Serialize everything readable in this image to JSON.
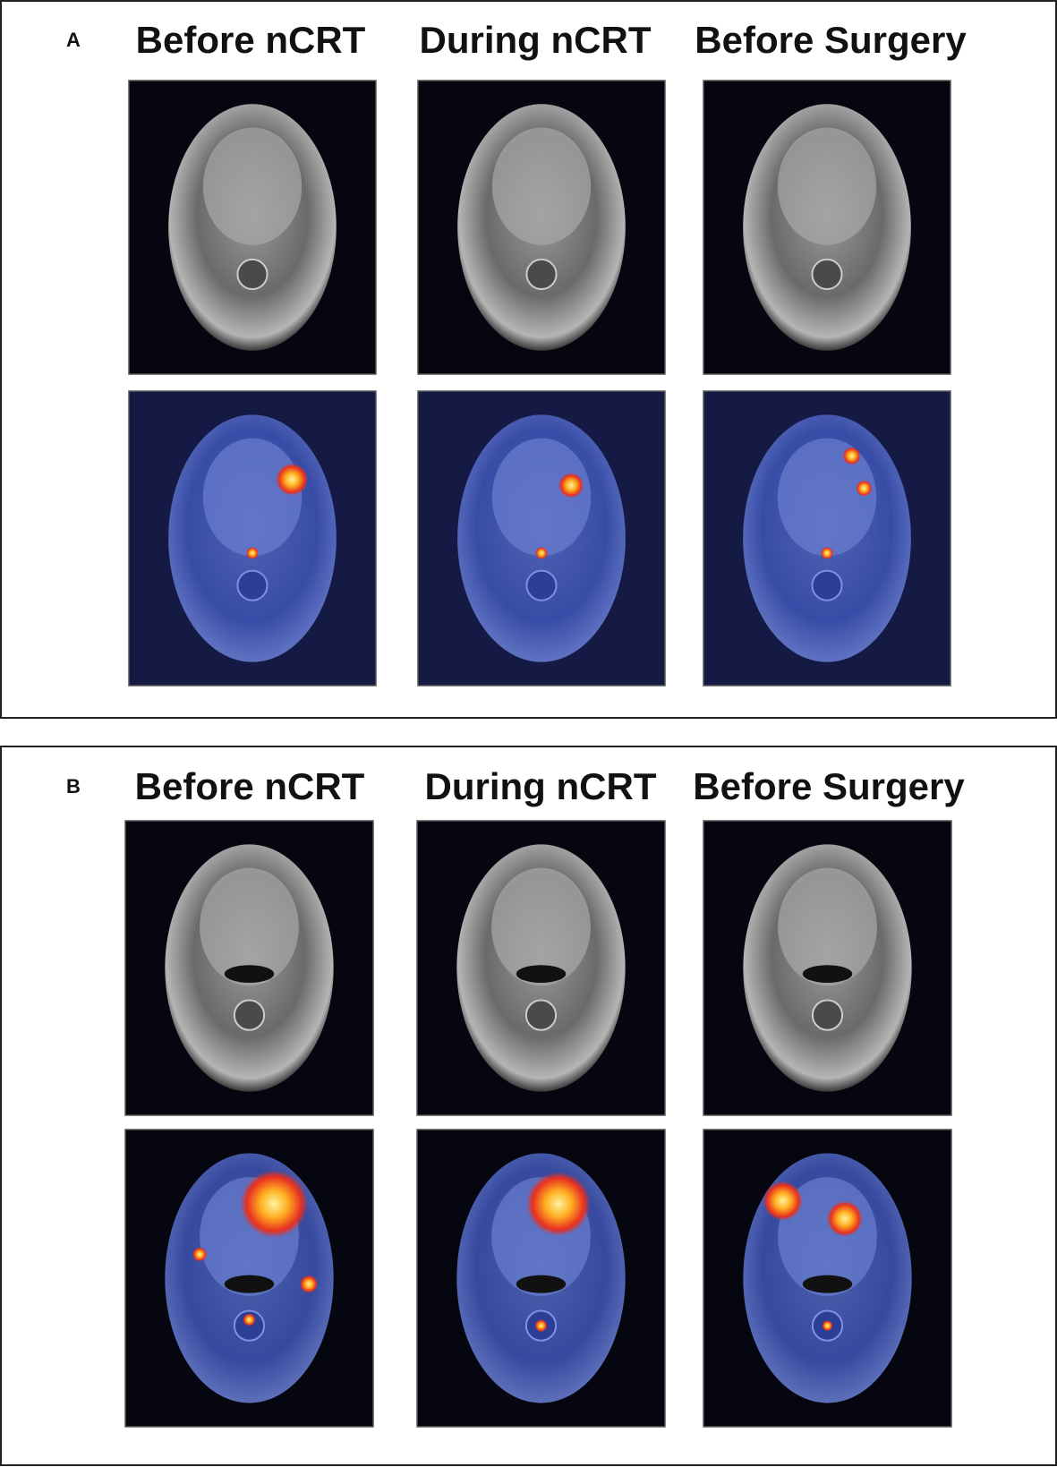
{
  "panels": [
    {
      "label": "A",
      "columns": [
        "Before nCRT",
        "During nCRT",
        "Before Surgery"
      ]
    },
    {
      "label": "B",
      "columns": [
        "Before nCRT",
        "During nCRT",
        "Before Surgery"
      ]
    }
  ]
}
